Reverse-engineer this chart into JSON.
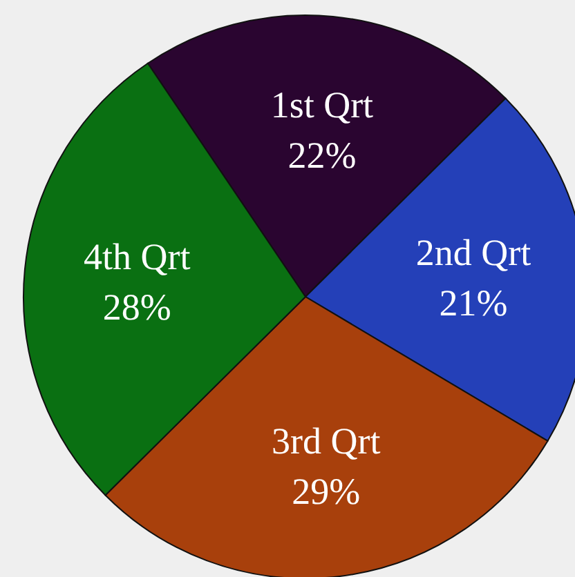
{
  "chart_data": {
    "type": "pie",
    "categories": [
      "1st Qrt",
      "2nd Qrt",
      "3rd Qrt",
      "4th Qrt"
    ],
    "values": [
      22,
      21,
      29,
      28
    ],
    "colors": [
      "#2a0530",
      "#2440b8",
      "#a8400c",
      "#0a7012"
    ],
    "value_labels": [
      "22%",
      "21%",
      "29%",
      "28%"
    ]
  }
}
